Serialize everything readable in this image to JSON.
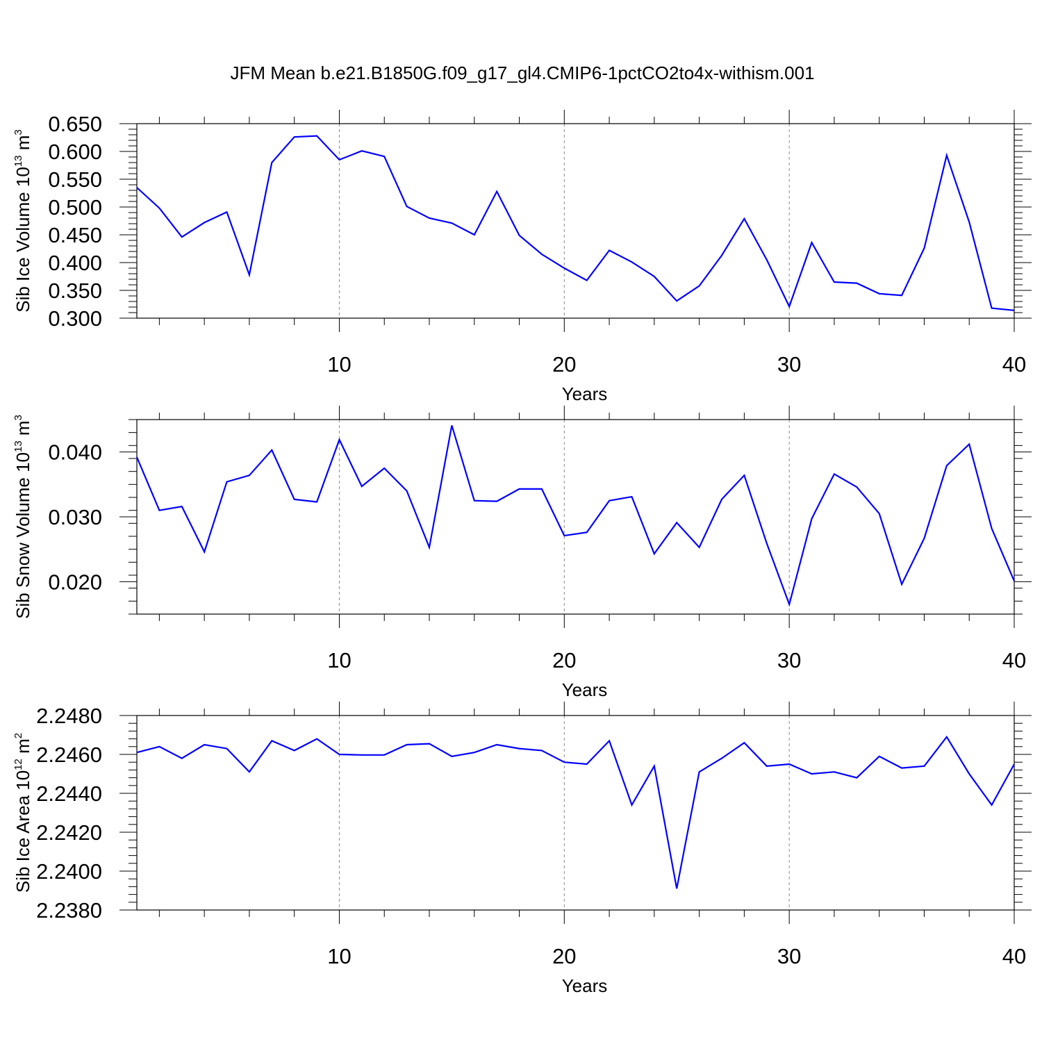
{
  "title": "JFM Mean b.e21.B1850G.f09_g17_gl4.CMIP6-1pctCO2to4x-withism.001",
  "colors": {
    "line": "#0000ff",
    "axis": "#000000",
    "grid": "#888888"
  },
  "chart_data": [
    {
      "type": "line",
      "xlabel": "Years",
      "ylabel": {
        "text": "Sib Ice Volume 10",
        "exp": "13",
        "unit": " m",
        "unit_exp": "3"
      },
      "xlim": [
        1,
        40
      ],
      "ylim": [
        0.3,
        0.65
      ],
      "xticks": [
        10,
        20,
        30,
        40
      ],
      "xtick_labels": [
        "10",
        "20",
        "30",
        "40"
      ],
      "yticks": [
        0.3,
        0.35,
        0.4,
        0.45,
        0.5,
        0.55,
        0.6,
        0.65
      ],
      "ytick_labels": [
        "0.300",
        "0.350",
        "0.400",
        "0.450",
        "0.500",
        "0.550",
        "0.600",
        "0.650"
      ],
      "x": [
        1,
        2,
        3,
        4,
        5,
        6,
        7,
        8,
        9,
        10,
        11,
        12,
        13,
        14,
        15,
        16,
        17,
        18,
        19,
        20,
        21,
        22,
        23,
        24,
        25,
        26,
        27,
        28,
        29,
        30,
        31,
        32,
        33,
        34,
        35,
        36,
        37,
        38,
        39,
        40
      ],
      "values": [
        0.535,
        0.498,
        0.446,
        0.472,
        0.491,
        0.378,
        0.58,
        0.626,
        0.628,
        0.585,
        0.601,
        0.591,
        0.501,
        0.48,
        0.471,
        0.45,
        0.528,
        0.449,
        0.415,
        0.39,
        0.368,
        0.422,
        0.401,
        0.375,
        0.331,
        0.358,
        0.413,
        0.479,
        0.405,
        0.321,
        0.436,
        0.365,
        0.363,
        0.344,
        0.341,
        0.426,
        0.593,
        0.473,
        0.318,
        0.314
      ],
      "grid": "vertical dashed at major x ticks"
    },
    {
      "type": "line",
      "xlabel": "Years",
      "ylabel": {
        "text": "Sib Snow Volume 10",
        "exp": "13",
        "unit": " m",
        "unit_exp": "3"
      },
      "xlim": [
        1,
        40
      ],
      "ylim": [
        0.015,
        0.045
      ],
      "xticks": [
        10,
        20,
        30,
        40
      ],
      "xtick_labels": [
        "10",
        "20",
        "30",
        "40"
      ],
      "yticks": [
        0.02,
        0.03,
        0.04
      ],
      "ytick_labels": [
        "0.020",
        "0.030",
        "0.040"
      ],
      "x": [
        1,
        2,
        3,
        4,
        5,
        6,
        7,
        8,
        9,
        10,
        11,
        12,
        13,
        14,
        15,
        16,
        17,
        18,
        19,
        20,
        21,
        22,
        23,
        24,
        25,
        26,
        27,
        28,
        29,
        30,
        31,
        32,
        33,
        34,
        35,
        36,
        37,
        38,
        39,
        40
      ],
      "values": [
        0.0392,
        0.031,
        0.0316,
        0.0246,
        0.0354,
        0.0364,
        0.0403,
        0.0327,
        0.0323,
        0.0419,
        0.0347,
        0.0375,
        0.034,
        0.0253,
        0.0441,
        0.0325,
        0.0324,
        0.0343,
        0.0343,
        0.0271,
        0.0276,
        0.0325,
        0.0331,
        0.0243,
        0.0291,
        0.0253,
        0.0327,
        0.0364,
        0.0259,
        0.0165,
        0.0297,
        0.0366,
        0.0346,
        0.0305,
        0.0196,
        0.0267,
        0.0379,
        0.0412,
        0.0282,
        0.0201
      ],
      "grid": "vertical dashed at major x ticks"
    },
    {
      "type": "line",
      "xlabel": "Years",
      "ylabel": {
        "text": "Sib Ice Area 10",
        "exp": "12",
        "unit": " m",
        "unit_exp": "2"
      },
      "xlim": [
        1,
        40
      ],
      "ylim": [
        2.238,
        2.248
      ],
      "xticks": [
        10,
        20,
        30,
        40
      ],
      "xtick_labels": [
        "10",
        "20",
        "30",
        "40"
      ],
      "yticks": [
        2.238,
        2.24,
        2.242,
        2.244,
        2.246,
        2.248
      ],
      "ytick_labels": [
        "2.2380",
        "2.2400",
        "2.2420",
        "2.2440",
        "2.2460",
        "2.2480"
      ],
      "x": [
        1,
        2,
        3,
        4,
        5,
        6,
        7,
        8,
        9,
        10,
        11,
        12,
        13,
        14,
        15,
        16,
        17,
        18,
        19,
        20,
        21,
        22,
        23,
        24,
        25,
        26,
        27,
        28,
        29,
        30,
        31,
        32,
        33,
        34,
        35,
        36,
        37,
        38,
        39,
        40
      ],
      "values": [
        2.2461,
        2.2464,
        2.2458,
        2.2465,
        2.2463,
        2.2451,
        2.2467,
        2.2462,
        2.2468,
        2.246,
        2.24597,
        2.24597,
        2.2465,
        2.24655,
        2.2459,
        2.2461,
        2.2465,
        2.2463,
        2.2462,
        2.2456,
        2.2455,
        2.2467,
        2.2434,
        2.2454,
        2.2391,
        2.2451,
        2.2458,
        2.2466,
        2.2454,
        2.2455,
        2.245,
        2.2451,
        2.2448,
        2.2459,
        2.2453,
        2.2454,
        2.2469,
        2.245,
        2.2434,
        2.2455
      ],
      "grid": "vertical dashed at major x ticks"
    }
  ]
}
